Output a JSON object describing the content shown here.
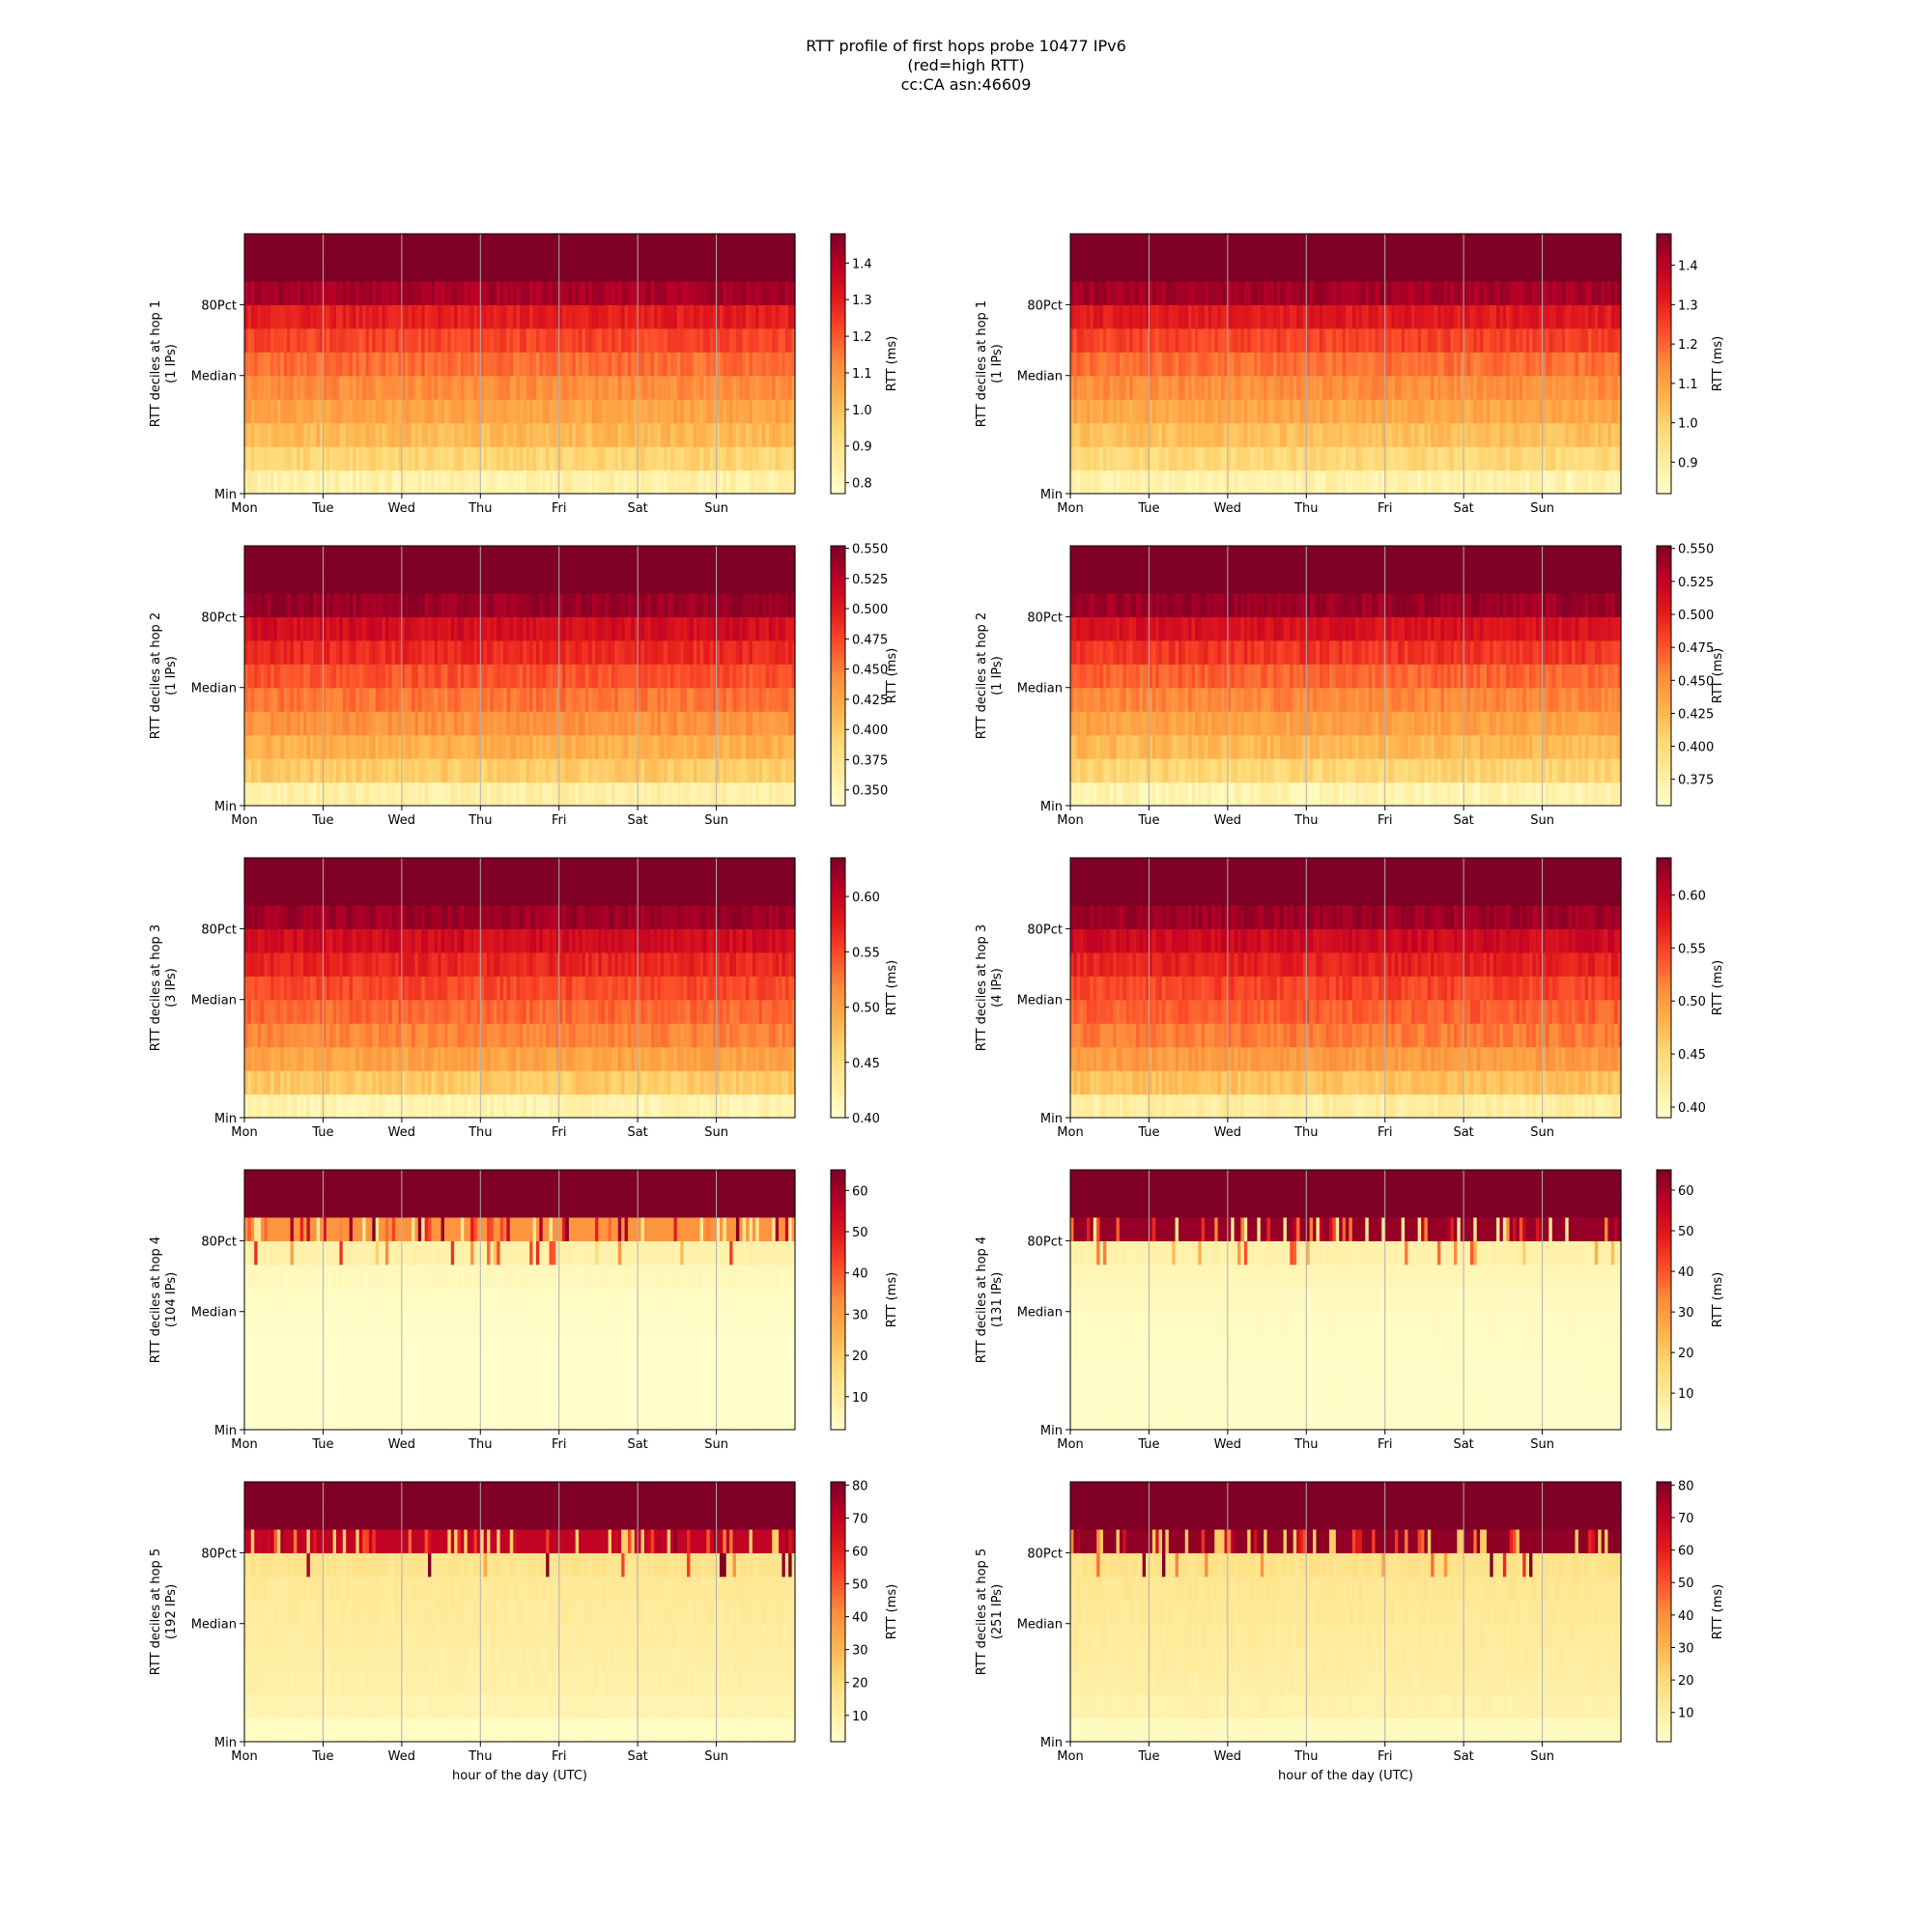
{
  "figure": {
    "title_lines": [
      "RTT profile of first hops probe 10477 IPv6",
      "(red=high RTT)",
      "cc:CA asn:46609"
    ]
  },
  "colors": {
    "colormap_YlOrRd": [
      "#ffffcc",
      "#ffeda0",
      "#fed976",
      "#feb24c",
      "#fd8d3c",
      "#fc4e2a",
      "#e31a1c",
      "#bd0026",
      "#800026"
    ],
    "gridline": "#b0b0b0"
  },
  "chart_data": [
    {
      "type": "heatmap",
      "panel": "hop1-left",
      "ylabel": [
        "RTT deciles at hop 1",
        "(1 IPs)"
      ],
      "xticks": [
        "Mon",
        "Tue",
        "Wed",
        "Thu",
        "Fri",
        "Sat",
        "Sun"
      ],
      "xlabel": "",
      "yticks": [
        "Min",
        "Median",
        "80Pct"
      ],
      "colorbar_label": "RTT (ms)",
      "colorbar_ticks": [
        "0.8",
        "0.9",
        "1.0",
        "1.1",
        "1.2",
        "1.3",
        "1.4"
      ],
      "crange": [
        0.77,
        1.48
      ],
      "decile_levels": [
        0.84,
        0.95,
        1.02,
        1.07,
        1.12,
        1.17,
        1.23,
        1.3,
        1.42,
        1.48
      ],
      "pattern": "gradient"
    },
    {
      "type": "heatmap",
      "panel": "hop1-right",
      "ylabel": [
        "RTT deciles at hop 1",
        "(1 IPs)"
      ],
      "xticks": [
        "Mon",
        "Tue",
        "Wed",
        "Thu",
        "Fri",
        "Sat",
        "Sun"
      ],
      "xlabel": "",
      "yticks": [
        "Min",
        "Median",
        "80Pct"
      ],
      "colorbar_label": "RTT (ms)",
      "colorbar_ticks": [
        "0.9",
        "1.0",
        "1.1",
        "1.2",
        "1.3",
        "1.4"
      ],
      "crange": [
        0.82,
        1.48
      ],
      "decile_levels": [
        0.88,
        0.98,
        1.04,
        1.09,
        1.14,
        1.19,
        1.25,
        1.32,
        1.43,
        1.48
      ],
      "pattern": "gradient"
    },
    {
      "type": "heatmap",
      "panel": "hop2-left",
      "ylabel": [
        "RTT deciles at hop 2",
        "(1 IPs)"
      ],
      "xticks": [
        "Mon",
        "Tue",
        "Wed",
        "Thu",
        "Fri",
        "Sat",
        "Sun"
      ],
      "xlabel": "",
      "yticks": [
        "Min",
        "Median",
        "80Pct"
      ],
      "colorbar_label": "RTT (ms)",
      "colorbar_ticks": [
        "0.350",
        "0.375",
        "0.400",
        "0.425",
        "0.450",
        "0.475",
        "0.500",
        "0.525",
        "0.550"
      ],
      "crange": [
        0.337,
        0.552
      ],
      "decile_levels": [
        0.36,
        0.4,
        0.42,
        0.44,
        0.455,
        0.47,
        0.49,
        0.51,
        0.54,
        0.552
      ],
      "pattern": "gradient"
    },
    {
      "type": "heatmap",
      "panel": "hop2-right",
      "ylabel": [
        "RTT deciles at hop 2",
        "(1 IPs)"
      ],
      "xticks": [
        "Mon",
        "Tue",
        "Wed",
        "Thu",
        "Fri",
        "Sat",
        "Sun"
      ],
      "xlabel": "",
      "yticks": [
        "Min",
        "Median",
        "80Pct"
      ],
      "colorbar_label": "RTT (ms)",
      "colorbar_ticks": [
        "0.375",
        "0.400",
        "0.425",
        "0.450",
        "0.475",
        "0.500",
        "0.525",
        "0.550"
      ],
      "crange": [
        0.355,
        0.552
      ],
      "decile_levels": [
        0.37,
        0.405,
        0.425,
        0.44,
        0.455,
        0.47,
        0.49,
        0.51,
        0.54,
        0.552
      ],
      "pattern": "gradient"
    },
    {
      "type": "heatmap",
      "panel": "hop3-left",
      "ylabel": [
        "RTT deciles at hop 3",
        "(3 IPs)"
      ],
      "xticks": [
        "Mon",
        "Tue",
        "Wed",
        "Thu",
        "Fri",
        "Sat",
        "Sun"
      ],
      "xlabel": "",
      "yticks": [
        "Min",
        "Median",
        "80Pct"
      ],
      "colorbar_label": "RTT (ms)",
      "colorbar_ticks": [
        "0.40",
        "0.45",
        "0.50",
        "0.55",
        "0.60"
      ],
      "crange": [
        0.4,
        0.635
      ],
      "decile_levels": [
        0.42,
        0.47,
        0.5,
        0.52,
        0.535,
        0.55,
        0.57,
        0.59,
        0.62,
        0.635
      ],
      "pattern": "gradient"
    },
    {
      "type": "heatmap",
      "panel": "hop3-right",
      "ylabel": [
        "RTT deciles at hop 3",
        "(4 IPs)"
      ],
      "xticks": [
        "Mon",
        "Tue",
        "Wed",
        "Thu",
        "Fri",
        "Sat",
        "Sun"
      ],
      "xlabel": "",
      "yticks": [
        "Min",
        "Median",
        "80Pct"
      ],
      "colorbar_label": "RTT (ms)",
      "colorbar_ticks": [
        "0.40",
        "0.45",
        "0.50",
        "0.55",
        "0.60"
      ],
      "crange": [
        0.39,
        0.635
      ],
      "decile_levels": [
        0.42,
        0.47,
        0.5,
        0.52,
        0.535,
        0.55,
        0.57,
        0.59,
        0.62,
        0.635
      ],
      "pattern": "gradient"
    },
    {
      "type": "heatmap",
      "panel": "hop4-left",
      "ylabel": [
        "RTT deciles at hop 4",
        "(104 IPs)"
      ],
      "xticks": [
        "Mon",
        "Tue",
        "Wed",
        "Thu",
        "Fri",
        "Sat",
        "Sun"
      ],
      "xlabel": "",
      "yticks": [
        "Min",
        "Median",
        "80Pct"
      ],
      "colorbar_label": "RTT (ms)",
      "colorbar_ticks": [
        "10",
        "20",
        "30",
        "40",
        "50",
        "60"
      ],
      "crange": [
        2,
        65
      ],
      "decile_levels": [
        2,
        2,
        2,
        2.5,
        3,
        3.5,
        5,
        8,
        32,
        65
      ],
      "pattern": "spiky"
    },
    {
      "type": "heatmap",
      "panel": "hop4-right",
      "ylabel": [
        "RTT deciles at hop 4",
        "(131 IPs)"
      ],
      "xticks": [
        "Mon",
        "Tue",
        "Wed",
        "Thu",
        "Fri",
        "Sat",
        "Sun"
      ],
      "xlabel": "",
      "yticks": [
        "Min",
        "Median",
        "80Pct"
      ],
      "colorbar_label": "RTT (ms)",
      "colorbar_ticks": [
        "10",
        "20",
        "30",
        "40",
        "50",
        "60"
      ],
      "crange": [
        1,
        65
      ],
      "decile_levels": [
        2,
        2,
        2,
        2.5,
        3,
        3.5,
        5,
        7,
        62,
        65
      ],
      "pattern": "spiky"
    },
    {
      "type": "heatmap",
      "panel": "hop5-left",
      "ylabel": [
        "RTT deciles at hop 5",
        "(192 IPs)"
      ],
      "xticks": [
        "Mon",
        "Tue",
        "Wed",
        "Thu",
        "Fri",
        "Sat",
        "Sun"
      ],
      "xlabel": "hour of the day (UTC)",
      "yticks": [
        "Min",
        "Median",
        "80Pct"
      ],
      "colorbar_label": "RTT (ms)",
      "colorbar_ticks": [
        "10",
        "20",
        "30",
        "40",
        "50",
        "60",
        "70",
        "80"
      ],
      "crange": [
        2,
        81
      ],
      "decile_levels": [
        4,
        8,
        10,
        11,
        12,
        13,
        14,
        16,
        70,
        81
      ],
      "pattern": "spiky"
    },
    {
      "type": "heatmap",
      "panel": "hop5-right",
      "ylabel": [
        "RTT deciles at hop 5",
        "(251 IPs)"
      ],
      "xticks": [
        "Mon",
        "Tue",
        "Wed",
        "Thu",
        "Fri",
        "Sat",
        "Sun"
      ],
      "xlabel": "hour of the day (UTC)",
      "yticks": [
        "Min",
        "Median",
        "80Pct"
      ],
      "colorbar_label": "RTT (ms)",
      "colorbar_ticks": [
        "10",
        "20",
        "30",
        "40",
        "50",
        "60",
        "70",
        "80"
      ],
      "crange": [
        1,
        81
      ],
      "decile_levels": [
        4,
        8,
        10,
        11,
        12,
        13,
        14,
        16,
        78,
        81
      ],
      "pattern": "spiky"
    }
  ]
}
